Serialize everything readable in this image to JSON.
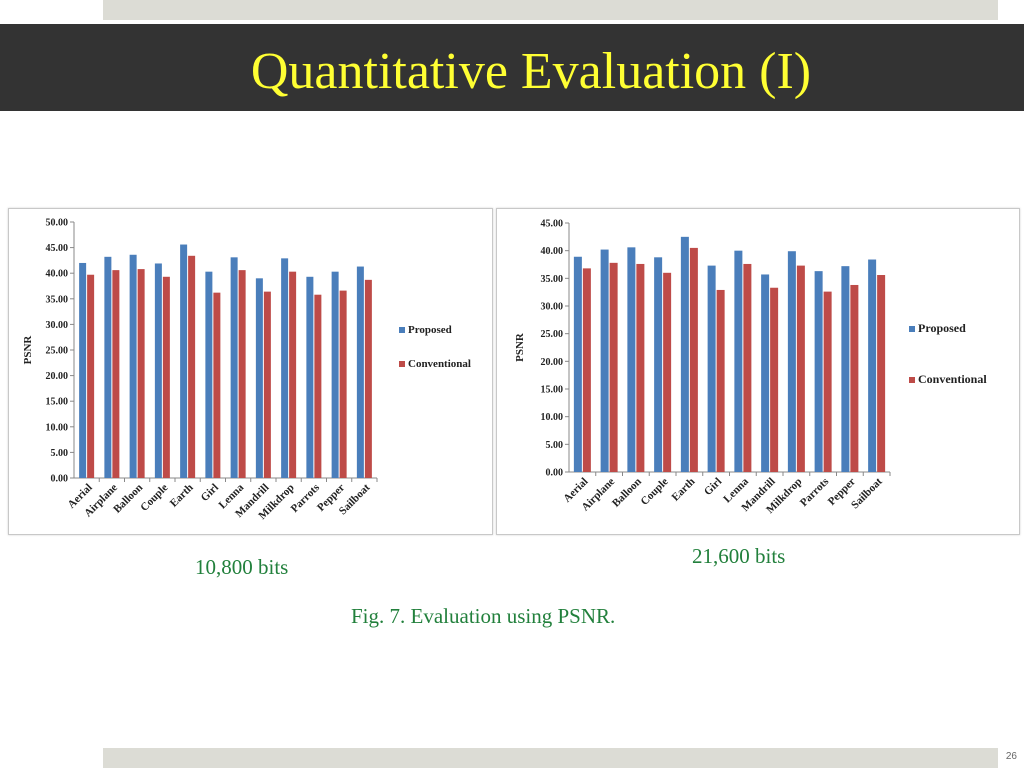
{
  "slide": {
    "title": "Quantitative Evaluation (I)",
    "caption_left": "10,800 bits",
    "caption_right": "21,600 bits",
    "figure_caption": "Fig. 7. Evaluation using PSNR.",
    "page_number": "26"
  },
  "colors": {
    "proposed": "#4a7ebb",
    "conventional": "#be4b48",
    "title": "#ffff33",
    "caption": "#22803c"
  },
  "chart_data": [
    {
      "type": "bar",
      "categories": [
        "Aerial",
        "Airplane",
        "Balloon",
        "Couple",
        "Earth",
        "Girl",
        "Lenna",
        "Mandrill",
        "Milkdrop",
        "Parrots",
        "Pepper",
        "Sailboat"
      ],
      "series": [
        {
          "name": "Proposed",
          "values": [
            42.0,
            43.2,
            43.6,
            41.9,
            45.6,
            40.3,
            43.1,
            39.0,
            42.9,
            39.3,
            40.3,
            41.3
          ]
        },
        {
          "name": "Conventional",
          "values": [
            39.7,
            40.6,
            40.8,
            39.3,
            43.4,
            36.2,
            40.6,
            36.4,
            40.3,
            35.8,
            36.6,
            38.7
          ]
        }
      ],
      "ylabel": "PSNR",
      "ylim": [
        0,
        50
      ],
      "yticks": [
        "0.00",
        "5.00",
        "10.00",
        "15.00",
        "20.00",
        "25.00",
        "30.00",
        "35.00",
        "40.00",
        "45.00",
        "50.00"
      ],
      "legend": "right",
      "grid": false
    },
    {
      "type": "bar",
      "categories": [
        "Aerial",
        "Airplane",
        "Balloon",
        "Couple",
        "Earth",
        "Girl",
        "Lenna",
        "Mandrill",
        "Milkdrop",
        "Parrots",
        "Pepper",
        "Sailboat"
      ],
      "series": [
        {
          "name": "Proposed",
          "values": [
            38.9,
            40.2,
            40.6,
            38.8,
            42.5,
            37.3,
            40.0,
            35.7,
            39.9,
            36.3,
            37.2,
            38.4
          ]
        },
        {
          "name": "Conventional",
          "values": [
            36.8,
            37.8,
            37.6,
            36.0,
            40.5,
            32.9,
            37.6,
            33.3,
            37.3,
            32.6,
            33.8,
            35.6
          ]
        }
      ],
      "ylabel": "PSNR",
      "ylim": [
        0,
        45
      ],
      "yticks": [
        "0.00",
        "5.00",
        "10.00",
        "15.00",
        "20.00",
        "25.00",
        "30.00",
        "35.00",
        "40.00",
        "45.00"
      ],
      "legend": "right",
      "grid": false
    }
  ]
}
